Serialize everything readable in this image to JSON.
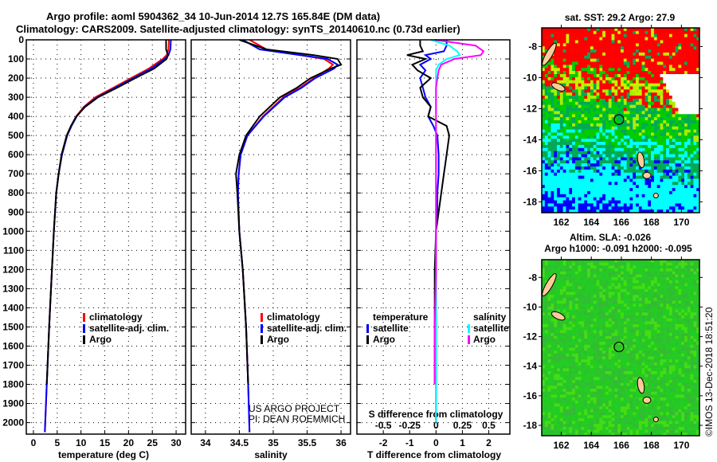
{
  "header": {
    "title_line1": "Argo profile: aoml 5904362_34 10-Jun-2014 12.7S 165.84E (DM data)",
    "title_line2": "Climatology: CARS2009. Satellite-adjusted climatology: synTS_20140610.nc (0.73d earlier)"
  },
  "colors": {
    "climatology": "#ff0000",
    "satellite": "#0000ff",
    "argo": "#000000",
    "sal_satellite": "#00ffff",
    "sal_argo": "#ff00ff"
  },
  "chart_data": [
    {
      "type": "line",
      "id": "temperature",
      "xlabel": "temperature (deg C)",
      "ylabel": "depth",
      "xlim": [
        -1.5,
        32
      ],
      "ylim": [
        2060,
        0
      ],
      "xticks": [
        0,
        5,
        10,
        15,
        20,
        25,
        30
      ],
      "yticks": [
        0,
        100,
        200,
        300,
        400,
        500,
        600,
        700,
        800,
        900,
        1000,
        1100,
        1200,
        1300,
        1400,
        1500,
        1600,
        1700,
        1800,
        1900,
        2000
      ],
      "grid": true,
      "legend": {
        "placement": "bottom-center",
        "entries": [
          "climatology",
          "satellite-adj. clim.",
          "Argo"
        ]
      },
      "depth": [
        0,
        50,
        80,
        100,
        150,
        200,
        250,
        300,
        350,
        400,
        450,
        500,
        600,
        700,
        800,
        1000,
        1200,
        1500,
        1800,
        2050
      ],
      "series": [
        {
          "name": "climatology",
          "values": [
            28.5,
            28.4,
            28.0,
            27.2,
            24.3,
            20.5,
            16.8,
            13.0,
            10.6,
            9.0,
            8.0,
            7.1,
            6.0,
            5.3,
            4.8,
            4.3,
            3.9,
            3.3,
            2.8,
            2.4
          ]
        },
        {
          "name": "satellite-adj. clim.",
          "values": [
            28.9,
            28.8,
            28.4,
            27.6,
            24.8,
            21.0,
            17.2,
            13.4,
            10.8,
            9.1,
            8.0,
            7.1,
            6.0,
            5.3,
            4.8,
            4.3,
            3.9,
            3.3,
            2.8,
            2.4
          ]
        },
        {
          "name": "Argo",
          "values": [
            27.9,
            27.9,
            28.3,
            28.0,
            25.4,
            21.4,
            17.6,
            13.6,
            10.9,
            9.0,
            7.9,
            7.0,
            5.9,
            5.3,
            4.8,
            4.3,
            3.9,
            3.3,
            2.8,
            null
          ]
        }
      ]
    },
    {
      "type": "line",
      "id": "salinity",
      "xlabel": "salinity",
      "xlim": [
        33.79,
        36.14
      ],
      "ylim": [
        2060,
        0
      ],
      "xticks": [
        34,
        34.5,
        35,
        35.5,
        36
      ],
      "grid": true,
      "legend": {
        "placement": "bottom-center",
        "entries": [
          "climatology",
          "satellite-adj. clim.",
          "Argo"
        ]
      },
      "annotation": [
        "US ARGO PROJECT",
        "PI: DEAN ROEMMICH"
      ],
      "depth": [
        0,
        50,
        80,
        100,
        130,
        150,
        200,
        250,
        300,
        400,
        500,
        600,
        700,
        800,
        1000,
        1200,
        1500,
        1800,
        2050
      ],
      "series": [
        {
          "name": "climatology",
          "values": [
            34.65,
            34.9,
            35.4,
            35.75,
            35.88,
            35.82,
            35.6,
            35.4,
            35.15,
            34.85,
            34.62,
            34.52,
            34.49,
            34.48,
            34.5,
            34.55,
            34.6,
            34.63,
            34.65
          ]
        },
        {
          "name": "satellite-adj. clim.",
          "values": [
            34.55,
            34.8,
            35.4,
            35.8,
            35.95,
            35.9,
            35.62,
            35.42,
            35.17,
            34.86,
            34.62,
            34.52,
            34.49,
            34.48,
            34.5,
            34.55,
            34.6,
            34.63,
            34.65
          ]
        },
        {
          "name": "Argo",
          "values": [
            34.5,
            34.9,
            35.6,
            35.95,
            36.0,
            35.85,
            35.55,
            35.35,
            35.1,
            34.8,
            34.6,
            34.5,
            34.45,
            34.47,
            34.5,
            34.55,
            34.6,
            34.63,
            null
          ]
        }
      ]
    },
    {
      "type": "line",
      "id": "differences",
      "xlabel": "T difference from climatology",
      "x2label": "S difference from climatology",
      "xlim": [
        -3,
        2.8
      ],
      "ylim": [
        2060,
        0
      ],
      "xticks": [
        -2,
        -1,
        0,
        1,
        2
      ],
      "x2ticks": [
        "-0.5",
        "-0.25",
        "0",
        "0.25",
        "0.5"
      ],
      "x2tick_values": [
        -0.5,
        -0.25,
        0,
        0.25,
        0.5
      ],
      "grid": true,
      "legend": {
        "placement": "bottom",
        "temperature_title": "temperature",
        "salinity_title": "salinity",
        "entries": [
          "satellite",
          "Argo"
        ]
      },
      "depth": [
        0,
        30,
        60,
        80,
        100,
        130,
        160,
        200,
        250,
        300,
        350,
        400,
        450,
        500,
        600,
        700,
        800,
        900,
        1000,
        1200,
        1500,
        1800,
        2000
      ],
      "series": [
        {
          "name": "temperature satellite",
          "values": [
            0.4,
            0.4,
            0.3,
            -0.4,
            -0.2,
            -0.6,
            -0.4,
            -0.6,
            -0.5,
            -0.4,
            -0.2,
            -0.3,
            -0.1,
            0.05,
            0.1,
            0.1,
            0.05,
            0.05,
            0.0,
            0.0,
            0.0,
            0.0,
            0.0
          ]
        },
        {
          "name": "temperature Argo",
          "values": [
            -0.6,
            -0.6,
            -0.5,
            -1.1,
            -0.4,
            -0.9,
            -0.7,
            -0.2,
            -0.6,
            -0.5,
            -0.2,
            -0.3,
            0.4,
            0.5,
            0.4,
            0.3,
            0.2,
            0.1,
            0.0,
            -0.05,
            -0.05,
            -0.05,
            null
          ]
        },
        {
          "name": "salinity satellite",
          "values": [
            -0.2,
            0.5,
            0.8,
            0.9,
            0.4,
            0.1,
            0.0,
            0.0,
            0.0,
            0.0,
            0.0,
            0.0,
            0.0,
            0.0,
            0.0,
            0.0,
            0.0,
            0.0,
            0.0,
            0.0,
            0.0,
            0.0,
            0.0
          ]
        },
        {
          "name": "salinity Argo",
          "values": [
            -0.05,
            1.5,
            1.8,
            1.7,
            0.7,
            0.2,
            0.1,
            0.05,
            0.0,
            0.0,
            0.0,
            0.0,
            0.0,
            0.0,
            0.0,
            0.0,
            0.0,
            0.0,
            0.0,
            0.0,
            -0.05,
            -0.05,
            null
          ]
        }
      ]
    },
    {
      "type": "heatmap",
      "id": "sst-map",
      "title": "sat. SST: 29.2 Argo: 27.9",
      "xlim": [
        160.7,
        171.2
      ],
      "ylim": [
        -18.7,
        -6.8
      ],
      "xticks": [
        162,
        164,
        166,
        168,
        170
      ],
      "yticks": [
        -8,
        -10,
        -12,
        -14,
        -16,
        -18
      ],
      "marker": {
        "lon": 165.84,
        "lat": -12.7
      }
    },
    {
      "type": "heatmap",
      "id": "sla-map",
      "title_line1": "Altim. SLA: -0.026",
      "title_line2": "Argo h1000: -0.091 h2000: -0.095",
      "xlim": [
        160.7,
        171.2
      ],
      "ylim": [
        -18.7,
        -6.8
      ],
      "xticks": [
        162,
        164,
        166,
        168,
        170
      ],
      "yticks": [
        -8,
        -10,
        -12,
        -14,
        -16,
        -18
      ],
      "marker": {
        "lon": 165.84,
        "lat": -12.7
      }
    }
  ],
  "footer": {
    "credit": "©IMOS 13-Dec-2018 18:51:20"
  }
}
